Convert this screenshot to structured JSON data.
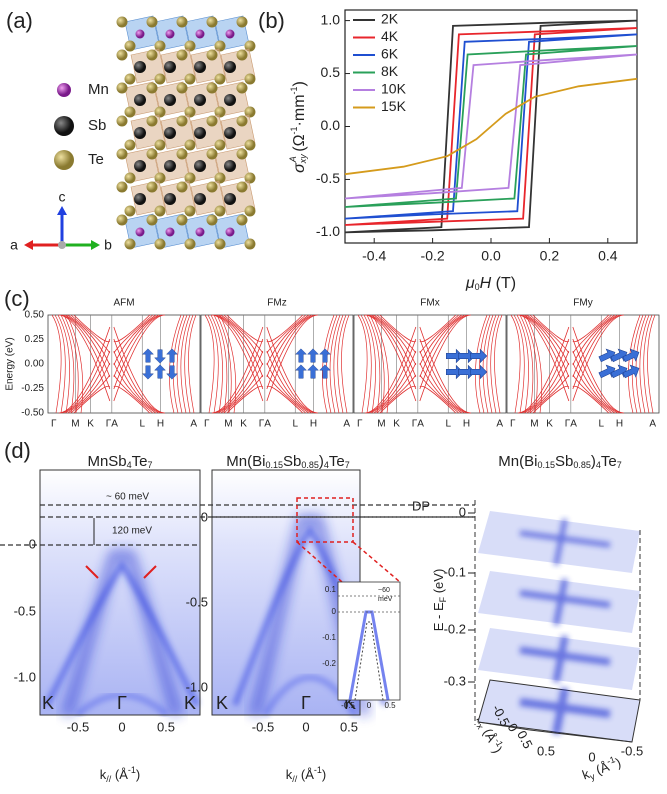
{
  "chart_data": {
    "type": "line",
    "panel_label": "(b)",
    "xlabel": [
      "μ",
      "0",
      "H",
      " (T)"
    ],
    "ylabel": [
      "σ",
      "xy",
      "A",
      " (Ω",
      "-1",
      "·mm",
      "-1",
      ")"
    ],
    "xlim": [
      -0.5,
      0.5
    ],
    "ylim": [
      -1.1,
      1.1
    ],
    "xticks": [
      -0.4,
      -0.2,
      {
        "value": 0,
        "label": "0.0"
      },
      0.2,
      0.4
    ],
    "yticks": [
      {
        "value": -1,
        "label": "-1.0"
      },
      -0.5,
      {
        "value": 0,
        "label": "0.0"
      },
      0.5,
      {
        "value": 1,
        "label": "1.0"
      }
    ],
    "legend": "upper left",
    "series": [
      {
        "name": "2K",
        "color": "#333333",
        "x": [
          -0.5,
          -0.2,
          0.13,
          0.15,
          0.17,
          0.5,
          0.2,
          -0.13,
          -0.15,
          -0.17,
          -0.5
        ],
        "values": [
          -1.0,
          -0.98,
          -0.95,
          0,
          0.95,
          1.0,
          0.98,
          0.95,
          0,
          -0.95,
          -1.0
        ]
      },
      {
        "name": "4K",
        "color": "#e8262c",
        "x": [
          -0.5,
          -0.2,
          0.11,
          0.13,
          0.15,
          0.5,
          0.2,
          -0.11,
          -0.13,
          -0.15,
          -0.5
        ],
        "values": [
          -0.93,
          -0.9,
          -0.87,
          0,
          0.87,
          0.93,
          0.9,
          0.87,
          0,
          -0.87,
          -0.93
        ]
      },
      {
        "name": "6K",
        "color": "#1f4fd1",
        "x": [
          -0.5,
          -0.2,
          0.09,
          0.11,
          0.13,
          0.5,
          0.2,
          -0.09,
          -0.11,
          -0.13,
          -0.5
        ],
        "values": [
          -0.87,
          -0.83,
          -0.8,
          0,
          0.8,
          0.87,
          0.83,
          0.8,
          0,
          -0.8,
          -0.87
        ]
      },
      {
        "name": "8K",
        "color": "#2aa05a",
        "x": [
          -0.5,
          -0.2,
          0.08,
          0.1,
          0.12,
          0.5,
          0.2,
          -0.08,
          -0.1,
          -0.12,
          -0.5
        ],
        "values": [
          -0.76,
          -0.72,
          -0.68,
          0,
          0.68,
          0.76,
          0.72,
          0.68,
          0,
          -0.68,
          -0.76
        ]
      },
      {
        "name": "10K",
        "color": "#b57fe0",
        "x": [
          -0.5,
          -0.2,
          0.06,
          0.08,
          0.1,
          0.5,
          0.2,
          -0.06,
          -0.08,
          -0.1,
          -0.5
        ],
        "values": [
          -0.68,
          -0.63,
          -0.58,
          0,
          0.58,
          0.68,
          0.63,
          0.58,
          0,
          -0.58,
          -0.68
        ]
      },
      {
        "name": "15K",
        "color": "#d59b1c",
        "x": [
          -0.5,
          -0.3,
          -0.15,
          -0.05,
          0,
          0.05,
          0.15,
          0.3,
          0.5
        ],
        "values": [
          -0.45,
          -0.38,
          -0.28,
          -0.12,
          0,
          0.12,
          0.28,
          0.38,
          0.45
        ]
      }
    ]
  },
  "panels": {
    "a": {
      "label": "(a)",
      "atoms": [
        "Mn",
        "Sb",
        "Te"
      ],
      "axes": [
        "a",
        "b",
        "c"
      ]
    },
    "c": {
      "label": "(c)",
      "ylabel": "Energy (eV)",
      "yticks": [
        "0.50",
        "0.25",
        "0.00",
        "-0.25",
        "-0.50"
      ],
      "titles": [
        "AFM",
        "FMz",
        "FMx",
        "FMy"
      ],
      "kpoints": [
        "Γ",
        "M",
        "K",
        "ΓA",
        "L",
        "H",
        "A"
      ]
    },
    "d": {
      "label": "(d)",
      "title1": [
        "MnSb",
        "4",
        "Te",
        "7"
      ],
      "title2": [
        "Mn(Bi",
        "0.15",
        "Sb",
        "0.85",
        ")",
        "4",
        "Te",
        "7"
      ],
      "gap1": "~ 60 meV",
      "gap2": "120 meV",
      "dp": "DP",
      "yticks1": [
        "-0",
        "-0.5",
        "-1.0"
      ],
      "yticks2": [
        "0",
        "-0.5",
        "-1.0"
      ],
      "xticks": [
        "-0.5",
        "0",
        "0.5"
      ],
      "klabels": [
        "K",
        "Γ",
        "K"
      ],
      "xlabel": [
        "k",
        "//",
        " (Å",
        "-1",
        ")"
      ],
      "inset": {
        "yticks": [
          "0.1",
          "0",
          "-0.1",
          "-0.2"
        ],
        "xticks": [
          "-0.5",
          "0",
          "0.5"
        ],
        "gap": [
          "~60",
          "meV"
        ]
      },
      "stack_ticks": [
        "0",
        "-0.1",
        "-0.2",
        "-0.3"
      ],
      "stack_ylabel": [
        "E - E",
        "F",
        " (eV)"
      ],
      "kx_label": [
        "k",
        "x",
        " (Å",
        "-1",
        ")"
      ],
      "ky_label": [
        "k",
        "y",
        " (Å",
        "-1",
        ")"
      ],
      "kx_ticks": [
        "-0.5",
        "0",
        "0.5"
      ],
      "ky_ticks": [
        "0.5",
        "0",
        "-0.5"
      ]
    }
  }
}
